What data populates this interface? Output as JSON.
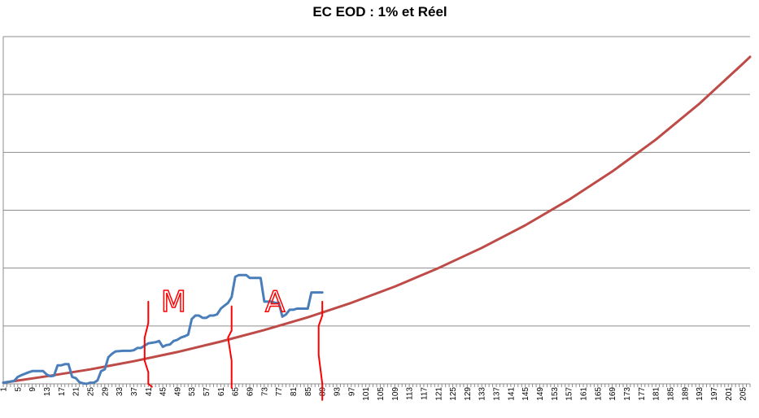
{
  "chart_data": {
    "type": "line",
    "title": "EC EOD : 1% et Réel",
    "xlabel": "",
    "ylabel": "",
    "grid": true,
    "legend": "none",
    "xlim": [
      1,
      207
    ],
    "ylim": [
      0,
      6
    ],
    "x_tick_start": 1,
    "x_tick_step": 4,
    "x_tick_labels": [
      "1",
      "5",
      "9",
      "13",
      "17",
      "21",
      "25",
      "29",
      "33",
      "37",
      "41",
      "45",
      "49",
      "53",
      "57",
      "61",
      "65",
      "69",
      "73",
      "77",
      "81",
      "85",
      "89",
      "93",
      "97",
      "101",
      "105",
      "109",
      "113",
      "117",
      "121",
      "125",
      "129",
      "133",
      "137",
      "141",
      "145",
      "149",
      "153",
      "157",
      "161",
      "165",
      "169",
      "173",
      "177",
      "181",
      "185",
      "189",
      "193",
      "197",
      "201",
      "205"
    ],
    "series": [
      {
        "color": "#be4b48",
        "growth_rate": 0.01,
        "n": 207,
        "x": [
          1,
          13,
          25,
          37,
          49,
          61,
          73,
          85,
          97,
          109,
          121,
          133,
          145,
          157,
          169,
          181,
          193,
          205,
          207
        ],
        "values": [
          0.02,
          0.13,
          0.25,
          0.39,
          0.55,
          0.73,
          0.93,
          1.15,
          1.4,
          1.68,
          2.0,
          2.35,
          2.74,
          3.18,
          3.67,
          4.22,
          4.84,
          5.53,
          5.65
        ]
      },
      {
        "color": "#4a7ebb",
        "x": [
          1,
          4,
          5,
          6,
          8,
          9,
          11,
          12,
          13,
          14,
          15,
          16,
          17,
          18,
          19,
          20,
          21,
          22,
          23,
          24,
          25,
          26,
          27,
          28,
          29,
          30,
          31,
          32,
          34,
          35,
          36,
          37,
          38,
          39,
          40,
          41,
          42,
          43,
          44,
          45,
          46,
          47,
          48,
          49,
          50,
          51,
          52,
          53,
          54,
          55,
          56,
          57,
          58,
          59,
          60,
          61,
          62,
          63,
          64,
          65,
          66,
          67,
          68,
          69,
          70,
          71,
          72,
          73,
          74,
          75,
          76,
          77,
          78,
          79,
          80,
          81,
          82,
          83,
          84,
          85,
          86,
          87,
          88,
          89
        ],
        "values": [
          0.02,
          0.05,
          0.12,
          0.15,
          0.2,
          0.22,
          0.22,
          0.22,
          0.16,
          0.13,
          0.14,
          0.32,
          0.32,
          0.34,
          0.34,
          0.12,
          0.1,
          0.03,
          0.01,
          0.0,
          0.02,
          0.02,
          0.06,
          0.22,
          0.25,
          0.46,
          0.52,
          0.56,
          0.57,
          0.57,
          0.57,
          0.58,
          0.62,
          0.62,
          0.66,
          0.7,
          0.71,
          0.72,
          0.74,
          0.64,
          0.67,
          0.68,
          0.74,
          0.76,
          0.8,
          0.82,
          0.85,
          1.12,
          1.18,
          1.18,
          1.14,
          1.14,
          1.18,
          1.18,
          1.2,
          1.3,
          1.35,
          1.4,
          1.5,
          1.85,
          1.88,
          1.88,
          1.88,
          1.83,
          1.83,
          1.83,
          1.83,
          1.42,
          1.42,
          1.42,
          1.4,
          1.4,
          1.16,
          1.2,
          1.28,
          1.28,
          1.3,
          1.3,
          1.3,
          1.3,
          1.58,
          1.58,
          1.58,
          1.58
        ]
      }
    ],
    "annotations": {
      "color": "#ff0000",
      "lines": [
        {
          "x": [
            41,
            41,
            40,
            40,
            41,
            41,
            42,
            42
          ],
          "y": [
            1.42,
            1.05,
            0.8,
            0.4,
            0.2,
            0.0,
            -0.05,
            -0.05
          ]
        },
        {
          "x": [
            64,
            64,
            63,
            64,
            64,
            64
          ],
          "y": [
            1.34,
            0.92,
            0.8,
            0.4,
            0.0,
            -0.07
          ]
        },
        {
          "x": [
            89,
            89,
            88,
            88,
            89,
            89
          ],
          "y": [
            1.42,
            1.18,
            1.0,
            0.5,
            0.0,
            -0.28
          ]
        }
      ],
      "marks": [
        "M",
        "A"
      ],
      "mark_positions": [
        {
          "x": 48,
          "y": 1.25
        },
        {
          "x": 76,
          "y": 1.25
        }
      ]
    }
  }
}
